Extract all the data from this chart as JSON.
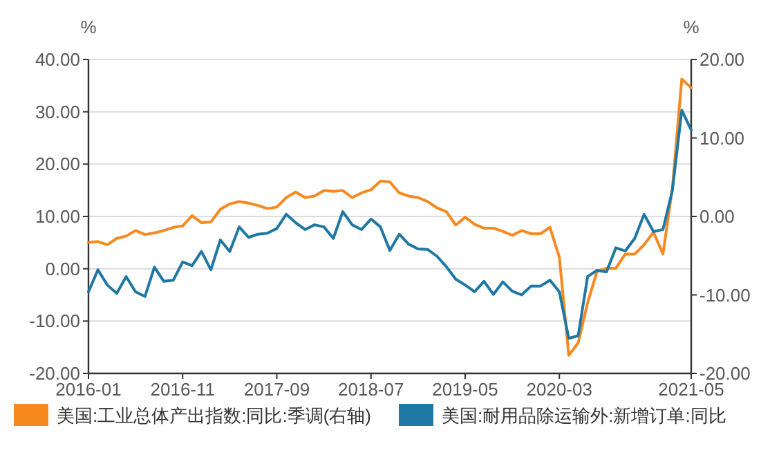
{
  "chart_data": {
    "type": "line",
    "categories": [
      "2016-01",
      null,
      null,
      null,
      null,
      null,
      null,
      null,
      null,
      null,
      "2016-11",
      null,
      null,
      null,
      null,
      null,
      null,
      null,
      null,
      null,
      "2017-09",
      null,
      null,
      null,
      null,
      null,
      null,
      null,
      null,
      null,
      "2018-07",
      null,
      null,
      null,
      null,
      null,
      null,
      null,
      null,
      null,
      "2019-05",
      null,
      null,
      null,
      null,
      null,
      null,
      null,
      null,
      null,
      "2020-03",
      null,
      null,
      null,
      null,
      null,
      null,
      null,
      null,
      null,
      null,
      null,
      null,
      null,
      "2021-05"
    ],
    "ylabel": "%",
    "y2label": "%",
    "ylim": [
      -20,
      40
    ],
    "yticks": [
      {
        "value": -20,
        "label": "-20.00"
      },
      {
        "value": -10,
        "label": "-10.00"
      },
      {
        "value": 0,
        "label": "0.00"
      },
      {
        "value": 10,
        "label": "10.00"
      },
      {
        "value": 20,
        "label": "20.00"
      },
      {
        "value": 30,
        "label": "30.00"
      },
      {
        "value": 40,
        "label": "40.00"
      }
    ],
    "y2lim": [
      -20,
      20
    ],
    "y2ticks": [
      {
        "value": -20,
        "label": "-20.00"
      },
      {
        "value": -10,
        "label": "-10.00"
      },
      {
        "value": 0,
        "label": "0.00"
      },
      {
        "value": 10,
        "label": "10.00"
      },
      {
        "value": 20,
        "label": "20.00"
      }
    ],
    "grid": "y",
    "legend": "bottom",
    "series": [
      {
        "name": "美国:工业总体产出指数:同比:季调(右轴)",
        "color": "#f7891f",
        "axis": "y2",
        "values": [
          -3.3,
          -3.2,
          -3.6,
          -2.8,
          -2.5,
          -1.8,
          -2.3,
          -2.1,
          -1.8,
          -1.4,
          -1.2,
          0.1,
          -0.8,
          -0.7,
          0.9,
          1.6,
          1.9,
          1.7,
          1.4,
          1.0,
          1.2,
          2.4,
          3.1,
          2.4,
          2.6,
          3.3,
          3.2,
          3.3,
          2.4,
          3.0,
          3.4,
          4.5,
          4.4,
          3.0,
          2.6,
          2.4,
          1.9,
          1.1,
          0.6,
          -1.1,
          -0.1,
          -1.0,
          -1.5,
          -1.5,
          -1.9,
          -2.4,
          -1.8,
          -2.2,
          -2.2,
          -1.4,
          -5.2,
          -17.7,
          -16.1,
          -11.0,
          -7.0,
          -6.6,
          -6.6,
          -4.8,
          -4.8,
          -3.6,
          -2.0,
          -4.8,
          3.6,
          17.5,
          16.4
        ]
      },
      {
        "name": "美国:耐用品除运输外:新增订单:同比",
        "color": "#1f77a4",
        "values": [
          -4.4,
          -0.2,
          -3.1,
          -4.7,
          -1.5,
          -4.4,
          -5.3,
          0.3,
          -2.4,
          -2.2,
          1.3,
          0.6,
          3.3,
          -0.2,
          5.5,
          3.3,
          8.0,
          6.0,
          6.6,
          6.8,
          7.7,
          10.4,
          8.8,
          7.5,
          8.4,
          8.0,
          5.8,
          10.9,
          8.4,
          7.5,
          9.5,
          8.0,
          3.5,
          6.6,
          4.7,
          3.8,
          3.7,
          2.4,
          0.4,
          -2.0,
          -3.1,
          -4.4,
          -2.4,
          -4.9,
          -2.5,
          -4.3,
          -5.0,
          -3.3,
          -3.3,
          -2.2,
          -4.4,
          -13.3,
          -12.8,
          -1.5,
          -0.3,
          -0.6,
          4.0,
          3.4,
          5.8,
          10.4,
          7.1,
          7.5,
          15.0,
          30.3,
          26.5
        ]
      }
    ]
  }
}
